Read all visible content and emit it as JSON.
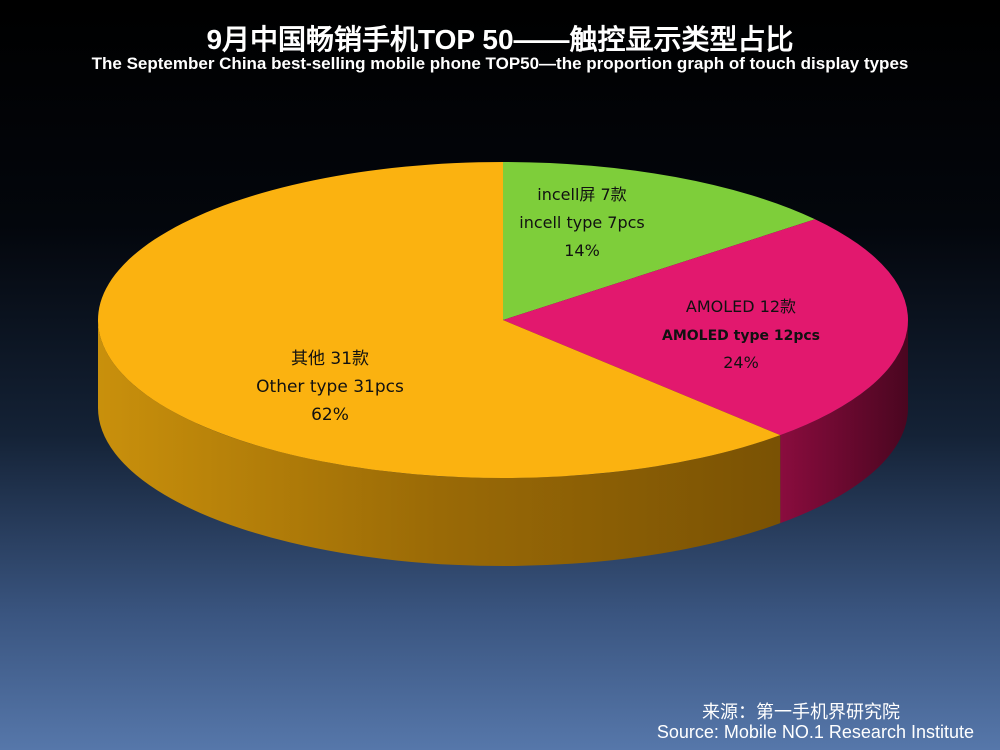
{
  "chart_data": {
    "type": "pie",
    "title": "9月中国畅销手机TOP 50——触控显示类型占比",
    "subtitle": "The September China best-selling mobile phone TOP50—the proportion graph of touch display types",
    "slices": [
      {
        "key": "incell",
        "value": 7,
        "percent": 14,
        "color": "#7ece3a",
        "side_color": "#4e8a1e",
        "label_lines": [
          "incell屏 7款",
          "incell type 7pcs",
          "14%"
        ]
      },
      {
        "key": "amoled",
        "value": 12,
        "percent": 24,
        "color": "#e2186e",
        "side_color": "#6e0a30",
        "label_lines": [
          "AMOLED 12款",
          "AMOLED type   12pcs",
          "24%"
        ]
      },
      {
        "key": "other",
        "value": 31,
        "percent": 62,
        "color": "#fbb210",
        "side_color": "#b07a08",
        "label_lines": [
          "其他 31款",
          "Other type  31pcs",
          "62%"
        ]
      }
    ],
    "style": "3d",
    "legend": "none"
  },
  "source": {
    "zh": "来源：第一手机界研究院",
    "en": "Source: Mobile NO.1 Research Institute"
  }
}
